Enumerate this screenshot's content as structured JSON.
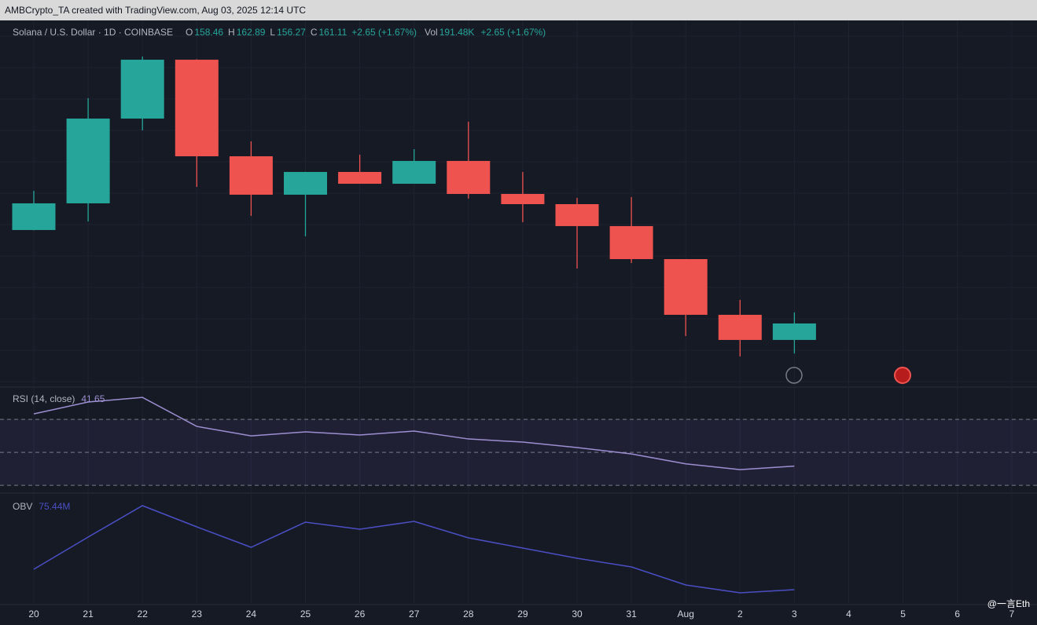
{
  "credit": "AMBCrypto_TA created with TradingView.com, Aug 03, 2025 12:14 UTC",
  "watermark": "@一言Eth",
  "chart_data": [
    {
      "type": "candlestick",
      "title": "Solana / U.S. Dollar · 1D · COINBASE",
      "ohlc_labels": [
        "O",
        "H",
        "L",
        "C"
      ],
      "change": "+2.65 (+1.67%)",
      "volume_label": "Vol",
      "volume": "191.48K",
      "volume_change": "+2.65 (+1.67%)",
      "categories": [
        "20",
        "21",
        "22",
        "23",
        "24",
        "25",
        "26",
        "27",
        "28",
        "29",
        "30",
        "31",
        "Aug",
        "2",
        "3",
        "4",
        "5",
        "6",
        "7"
      ],
      "open": [
        176.14,
        180.43,
        194.06,
        203.53,
        188.0,
        181.82,
        185.48,
        183.58,
        187.25,
        181.94,
        180.3,
        176.77,
        171.46,
        162.5,
        158.46,
        null,
        null,
        null,
        null
      ],
      "high": [
        182.45,
        197.35,
        204.04,
        203.6,
        190.4,
        185.5,
        188.26,
        189.14,
        193.56,
        185.48,
        181.31,
        181.44,
        171.46,
        164.9,
        162.89,
        null,
        null,
        null,
        null
      ],
      "low": [
        176.1,
        177.52,
        192.17,
        183.08,
        178.41,
        175.13,
        183.58,
        183.58,
        181.19,
        177.4,
        169.95,
        170.83,
        159.09,
        155.81,
        156.27,
        null,
        null,
        null,
        null
      ],
      "close": [
        180.43,
        194.06,
        203.53,
        188.0,
        181.82,
        185.48,
        183.58,
        187.25,
        181.94,
        180.3,
        176.77,
        171.46,
        162.5,
        158.46,
        161.11,
        null,
        null,
        null,
        null
      ],
      "up_color": "#26a69a",
      "down_color": "#ef5350",
      "ylim": [
        151.0,
        209.6
      ]
    },
    {
      "type": "line",
      "title": "RSI (14, close)",
      "legend_value": 41.65,
      "values": [
        73.3,
        80.5,
        83.3,
        65.7,
        60.0,
        62.4,
        60.5,
        62.9,
        58.1,
        56.2,
        52.9,
        49.0,
        43.0,
        39.5,
        41.65,
        null,
        null,
        null,
        null
      ],
      "color": "#9c8fd1",
      "levels": [
        70,
        50,
        30
      ],
      "band_color": "#7e57c2",
      "ylim": [
        26.7,
        88.6
      ]
    },
    {
      "type": "line",
      "title": "OBV",
      "legend_value": {
        "value": 75.44,
        "label": "75.44M"
      },
      "values": [
        75.7,
        76.11,
        76.51,
        76.24,
        75.98,
        76.3,
        76.21,
        76.31,
        76.1,
        75.97,
        75.84,
        75.73,
        75.5,
        75.4,
        75.44,
        null,
        null,
        null,
        null
      ],
      "color": "#4a4fc4",
      "ylim": [
        75.25,
        76.63
      ]
    }
  ]
}
